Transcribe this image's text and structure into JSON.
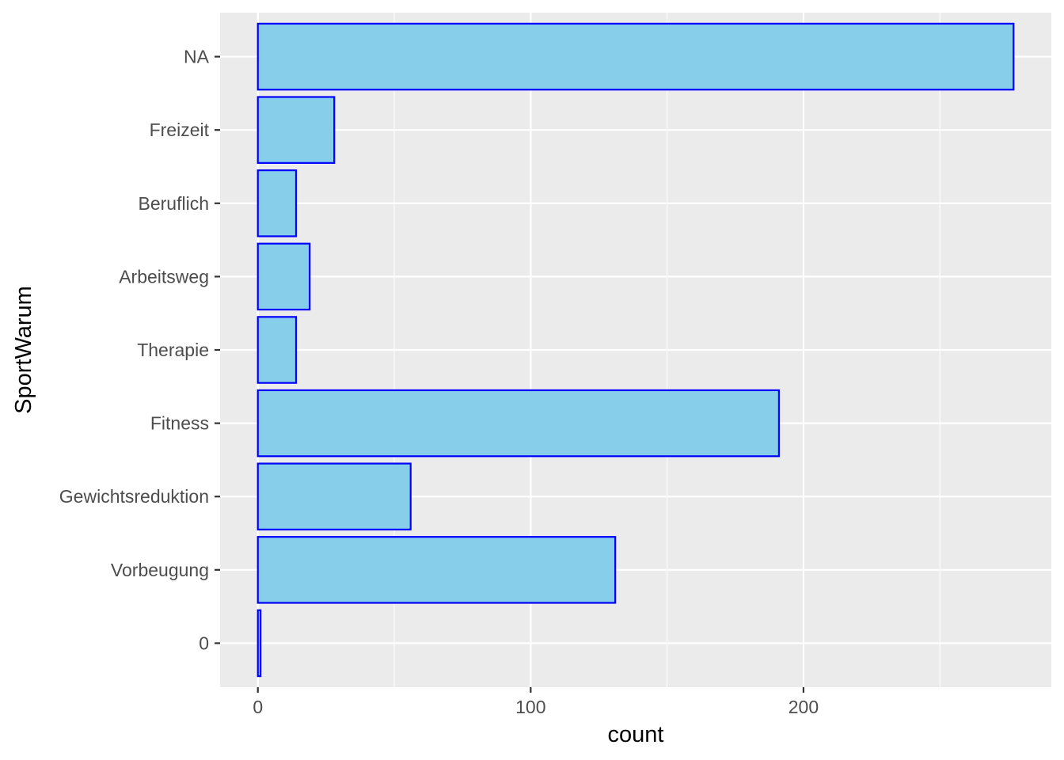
{
  "chart_data": {
    "type": "bar",
    "orientation": "horizontal",
    "categories": [
      "0",
      "Vorbeugung",
      "Gewichtsreduktion",
      "Fitness",
      "Therapie",
      "Arbeitsweg",
      "Beruflich",
      "Freizeit",
      "NA"
    ],
    "values": [
      1,
      131,
      56,
      191,
      14,
      19,
      14,
      28,
      277
    ],
    "xlabel": "count",
    "ylabel": "SportWarum",
    "xlim": [
      -13.85,
      290.85
    ],
    "xticks": [
      0,
      100,
      200
    ],
    "grid": true,
    "colors": {
      "fill": "#87CEEB",
      "outline": "#0000FF",
      "panel": "#EBEBEB",
      "grid": "#FFFFFF"
    }
  }
}
